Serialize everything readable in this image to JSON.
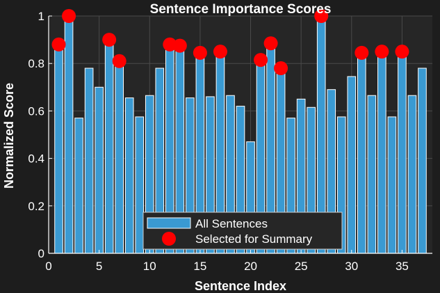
{
  "chart_data": {
    "type": "bar",
    "title": "Sentence Importance Scores",
    "xlabel": "Sentence Index",
    "ylabel": "Normalized Score",
    "xlim": [
      0,
      38
    ],
    "ylim": [
      0,
      1
    ],
    "xticks": [
      0,
      5,
      10,
      15,
      20,
      25,
      30,
      35
    ],
    "yticks": [
      0,
      0.2,
      0.4,
      0.6,
      0.8,
      1
    ],
    "ytick_labels": [
      "0",
      "0.2",
      "0.4",
      "0.6",
      "0.8",
      "1"
    ],
    "grid": true,
    "legend_position": "bottom-center",
    "colors": {
      "background": "#1d1d1d",
      "axes_bg": "#262626",
      "bar": "#3a9ad2",
      "bar_edge": "#ffffff",
      "marker": "#ff0000",
      "grid": "#4a4a4a",
      "text": "#ffffff"
    },
    "series": [
      {
        "name": "All Sentences",
        "type": "bar",
        "x": [
          1,
          2,
          3,
          4,
          5,
          6,
          7,
          8,
          9,
          10,
          11,
          12,
          13,
          14,
          15,
          16,
          17,
          18,
          19,
          20,
          21,
          22,
          23,
          24,
          25,
          26,
          27,
          28,
          29,
          30,
          31,
          32,
          33,
          34,
          35,
          36,
          37
        ],
        "values": [
          0.88,
          1.0,
          0.57,
          0.78,
          0.7,
          0.9,
          0.81,
          0.655,
          0.575,
          0.665,
          0.78,
          0.88,
          0.875,
          0.655,
          0.845,
          0.66,
          0.85,
          0.665,
          0.62,
          0.47,
          0.815,
          0.885,
          0.78,
          0.57,
          0.65,
          0.615,
          1.0,
          0.69,
          0.575,
          0.745,
          0.845,
          0.665,
          0.85,
          0.575,
          0.85,
          0.665,
          0.78
        ]
      },
      {
        "name": "Selected for Summary",
        "type": "scatter",
        "x": [
          1,
          2,
          6,
          7,
          12,
          13,
          15,
          17,
          21,
          22,
          23,
          27,
          31,
          33,
          35
        ],
        "values": [
          0.88,
          1.0,
          0.9,
          0.81,
          0.88,
          0.875,
          0.845,
          0.85,
          0.815,
          0.885,
          0.78,
          1.0,
          0.845,
          0.85,
          0.85
        ]
      }
    ]
  }
}
